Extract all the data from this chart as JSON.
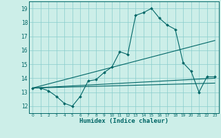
{
  "title": "",
  "xlabel": "Humidex (Indice chaleur)",
  "ylabel": "",
  "bg_color": "#cceee8",
  "grid_color": "#88cccc",
  "line_color": "#006666",
  "xlim": [
    -0.5,
    23.5
  ],
  "ylim": [
    11.5,
    19.5
  ],
  "xticks": [
    0,
    1,
    2,
    3,
    4,
    5,
    6,
    7,
    8,
    9,
    10,
    11,
    12,
    13,
    14,
    15,
    16,
    17,
    18,
    19,
    20,
    21,
    22,
    23
  ],
  "yticks": [
    12,
    13,
    14,
    15,
    16,
    17,
    18,
    19
  ],
  "line1_x": [
    0,
    1,
    2,
    3,
    4,
    5,
    6,
    7,
    8,
    9,
    10,
    11,
    12,
    13,
    14,
    15,
    16,
    17,
    18,
    19,
    20,
    21,
    22,
    23
  ],
  "line1_y": [
    13.3,
    13.3,
    13.1,
    12.7,
    12.2,
    12.0,
    12.7,
    13.8,
    13.9,
    14.4,
    14.8,
    15.9,
    15.7,
    18.5,
    18.7,
    19.0,
    18.3,
    17.8,
    17.5,
    15.1,
    14.5,
    13.0,
    14.1,
    14.1
  ],
  "line2_x": [
    0,
    23
  ],
  "line2_y": [
    13.3,
    16.7
  ],
  "line3_x": [
    0,
    23
  ],
  "line3_y": [
    13.3,
    14.0
  ],
  "line4_x": [
    0,
    23
  ],
  "line4_y": [
    13.3,
    13.65
  ]
}
